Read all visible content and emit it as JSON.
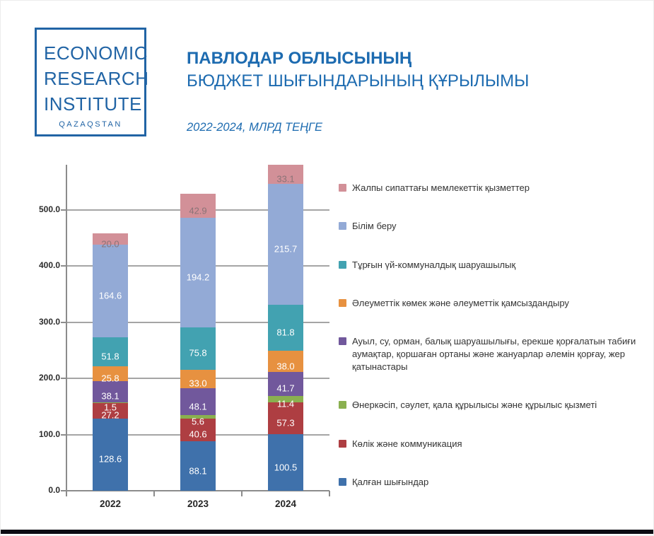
{
  "header": {
    "logo": {
      "lines": [
        "ECONOMIC",
        "RESEARCH",
        "INSTITUTE"
      ],
      "country": "QAZAQSTAN"
    },
    "title_line1": "ПАВЛОДАР ОБЛЫСЫНЫҢ",
    "title_line2": "БЮДЖЕТ ШЫҒЫНДАРЫНЫҢ ҚҰРЫЛЫМЫ",
    "subtitle": "2022-2024, МЛРД ТЕҢГЕ"
  },
  "colors": {
    "title_blue": "#1d6bb0",
    "logo_blue": "#2164a5",
    "grid": "#a5a5a5",
    "axis": "#8c8c8c",
    "tick_text": "#2b2b2b",
    "legend_text": "#333333",
    "value_label": "#ffffff"
  },
  "chart_data": {
    "type": "bar",
    "stacked": true,
    "title": "ПАВЛОДАР ОБЛЫСЫНЫҢ БЮДЖЕТ ШЫҒЫНДАРЫНЫҢ ҚҰРЫЛЫМЫ",
    "subtitle": "2022-2024, МЛРД ТЕҢГЕ",
    "categories": [
      "2022",
      "2023",
      "2024"
    ],
    "series": [
      {
        "name": "Қалған шығындар",
        "color": "#3f71ab",
        "values": [
          128.6,
          88.1,
          100.5
        ]
      },
      {
        "name": "Көлік және коммуникация",
        "color": "#ae3e42",
        "values": [
          27.2,
          40.6,
          57.3
        ]
      },
      {
        "name": "Өнеркәсіп, сәулет, қала құрылысы және құрылыс қызметі",
        "color": "#8ab04f",
        "values": [
          1.5,
          5.6,
          11.4
        ]
      },
      {
        "name": "Ауыл, су, орман, балық шаруашылығы, ерекше қорғалатын табиғи аумақтар, қоршаған ортаны және жануарлар әлемін қорғау, жер қатынастары",
        "color": "#71589c",
        "values": [
          38.1,
          48.1,
          41.7
        ]
      },
      {
        "name": "Әлеуметтік көмек және әлеуметтік қамсыздандыру",
        "color": "#e79140",
        "values": [
          25.8,
          33.0,
          38.0
        ]
      },
      {
        "name": "Тұрғын үй-коммуналдық шаруашылық",
        "color": "#42a2b1",
        "values": [
          51.8,
          75.8,
          81.8
        ]
      },
      {
        "name": "Білім беру",
        "color": "#93aad6",
        "values": [
          164.6,
          194.2,
          215.7
        ]
      },
      {
        "name": "Жалпы сипаттағы мемлекеттік қызметтер",
        "color": "#d29098",
        "values": [
          20.0,
          42.9,
          33.1
        ],
        "label_color": "#8a7377"
      }
    ],
    "totals": [
      457.6,
      528.3,
      579.5
    ],
    "yticks": [
      0,
      100,
      200,
      300,
      400,
      500
    ],
    "ytick_labels": [
      "0.0",
      "100.0",
      "200.0",
      "300.0",
      "400.0",
      "500.0"
    ],
    "ylim": [
      0,
      580
    ],
    "xlabel": "",
    "ylabel": "",
    "grid": true,
    "legend_position": "right",
    "legend_order": "top-of-stack-first",
    "value_labels": "inside-white"
  }
}
